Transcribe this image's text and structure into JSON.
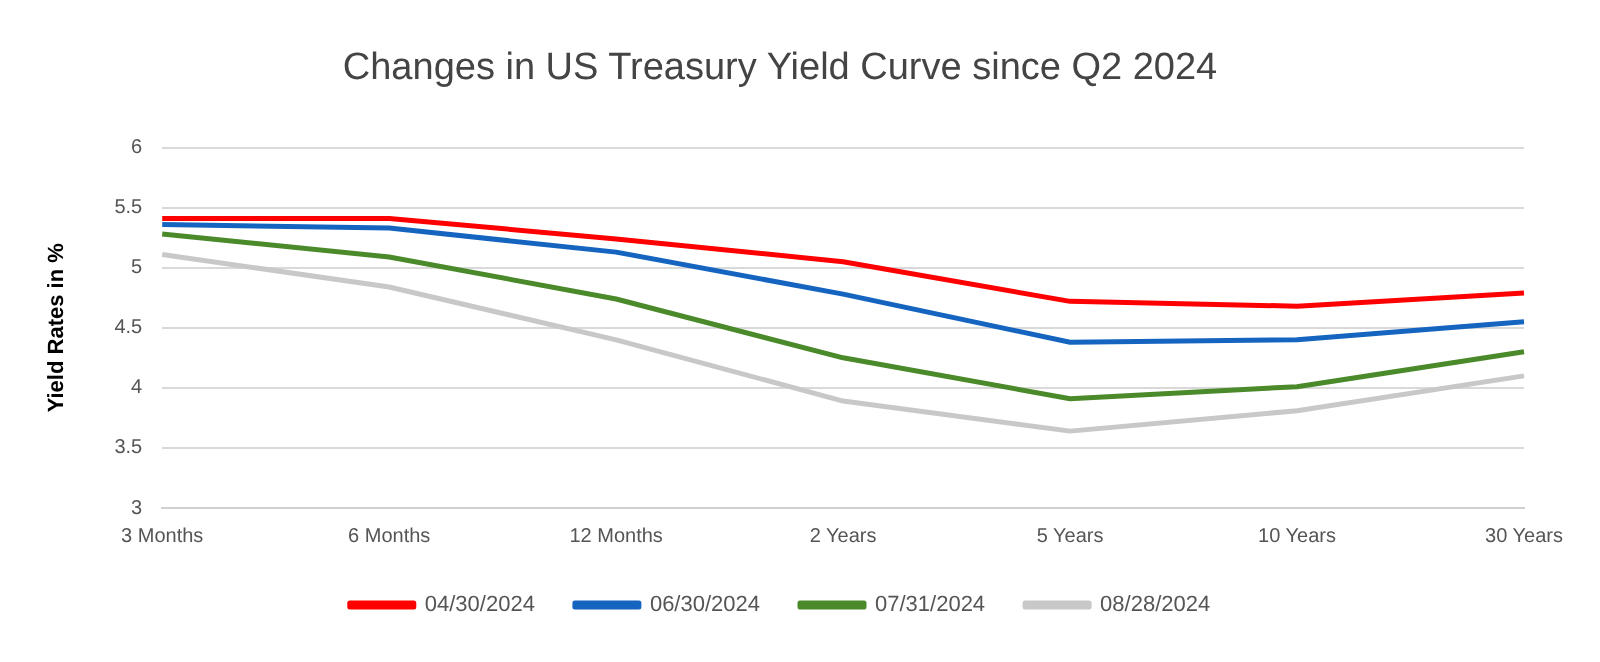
{
  "chart_data": {
    "type": "line",
    "title": "Changes in US Treasury Yield Curve since Q2 2024",
    "ylabel": "Yield Rates in %",
    "categories": [
      "3 Months",
      "6 Months",
      "12 Months",
      "2 Years",
      "5 Years",
      "10 Years",
      "30 Years"
    ],
    "series": [
      {
        "name": "04/30/2024",
        "color": "#ff0000",
        "values": [
          5.41,
          5.41,
          5.24,
          5.05,
          4.72,
          4.68,
          4.79
        ]
      },
      {
        "name": "06/30/2024",
        "color": "#1565c0",
        "values": [
          5.36,
          5.33,
          5.13,
          4.78,
          4.38,
          4.4,
          4.55
        ]
      },
      {
        "name": "07/31/2024",
        "color": "#4a8a2a",
        "values": [
          5.28,
          5.09,
          4.74,
          4.25,
          3.91,
          4.01,
          4.3
        ]
      },
      {
        "name": "08/28/2024",
        "color": "#c8c8c8",
        "values": [
          5.11,
          4.84,
          4.4,
          3.89,
          3.64,
          3.81,
          4.1
        ]
      }
    ],
    "ylim": [
      3,
      6
    ],
    "yticks": [
      3,
      3.5,
      4,
      4.5,
      5,
      5.5,
      6
    ],
    "grid": "y",
    "legend": "bottom",
    "marker": "none",
    "line_style": "solid"
  }
}
